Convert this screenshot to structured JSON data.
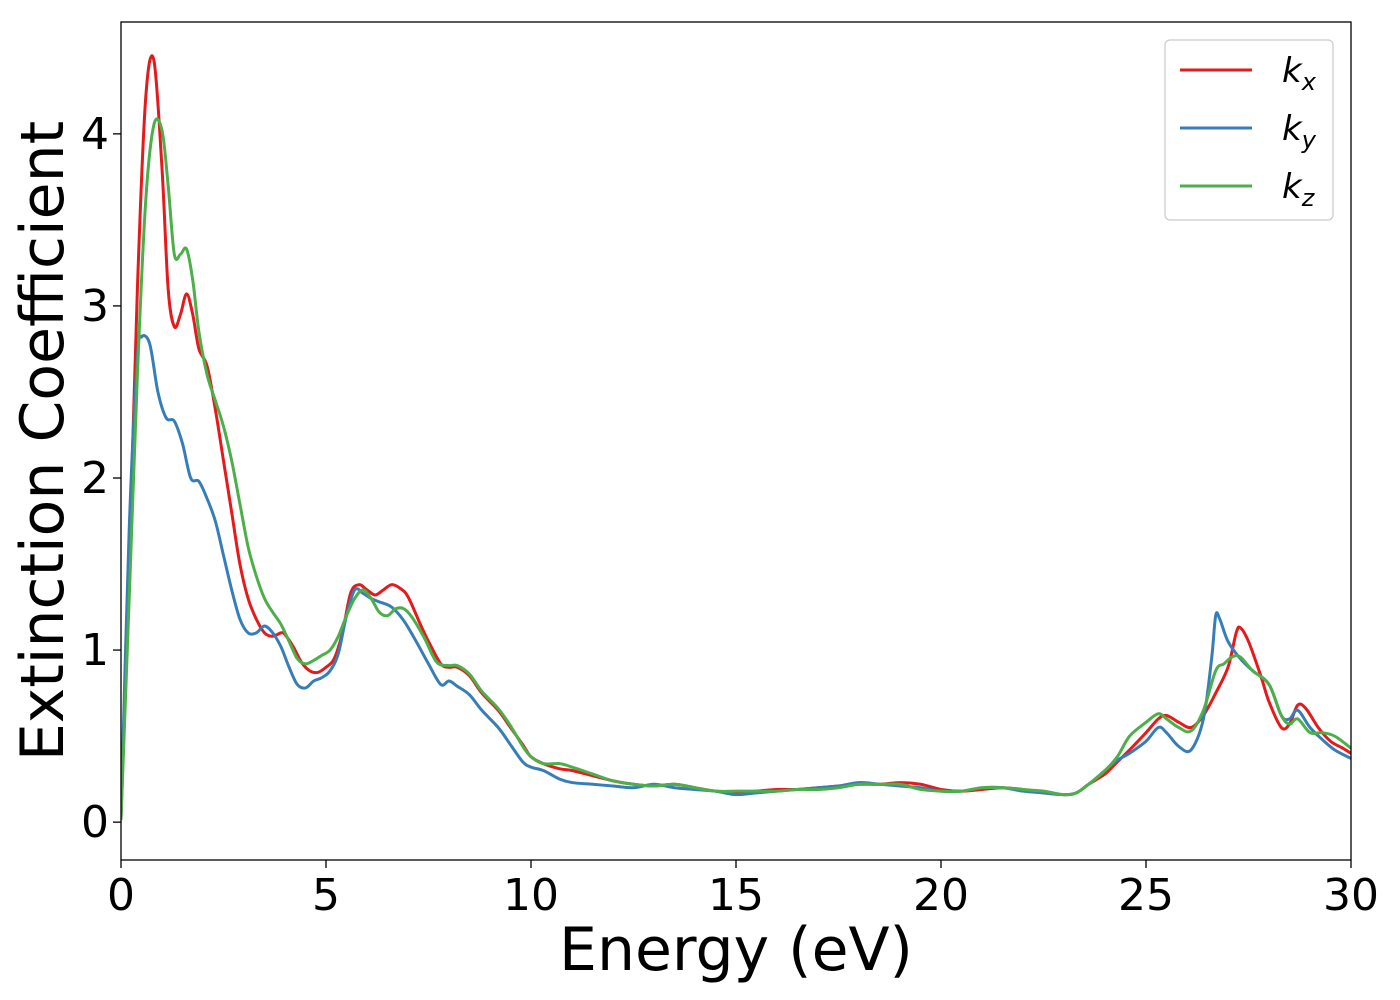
{
  "chart_data": {
    "type": "line",
    "title": "",
    "xlabel": "Energy (eV)",
    "ylabel": "Extinction Coefficient",
    "xlim": [
      0,
      30
    ],
    "ylim": [
      -0.22,
      4.65
    ],
    "xticks": [
      0,
      5,
      10,
      15,
      20,
      25,
      30
    ],
    "yticks": [
      0,
      1,
      2,
      3,
      4
    ],
    "xtick_labels": [
      "0",
      "5",
      "10",
      "15",
      "20",
      "25",
      "30"
    ],
    "ytick_labels": [
      "0",
      "1",
      "2",
      "3",
      "4"
    ],
    "grid": false,
    "legend_position": "top-right",
    "series": [
      {
        "name": "k_x",
        "label_main": "k",
        "label_sub": "x",
        "color": "#e41a1c",
        "points": [
          [
            0,
            0.02
          ],
          [
            0.2,
            1.5
          ],
          [
            0.4,
            3.1
          ],
          [
            0.6,
            4.2
          ],
          [
            0.8,
            4.43
          ],
          [
            1.0,
            3.8
          ],
          [
            1.15,
            3.1
          ],
          [
            1.3,
            2.88
          ],
          [
            1.45,
            2.95
          ],
          [
            1.6,
            3.07
          ],
          [
            1.75,
            2.95
          ],
          [
            1.9,
            2.75
          ],
          [
            2.1,
            2.65
          ],
          [
            2.3,
            2.4
          ],
          [
            2.5,
            2.1
          ],
          [
            2.7,
            1.8
          ],
          [
            2.9,
            1.5
          ],
          [
            3.1,
            1.3
          ],
          [
            3.3,
            1.18
          ],
          [
            3.5,
            1.1
          ],
          [
            3.7,
            1.08
          ],
          [
            3.9,
            1.1
          ],
          [
            4.0,
            1.09
          ],
          [
            4.2,
            1.02
          ],
          [
            4.4,
            0.93
          ],
          [
            4.6,
            0.88
          ],
          [
            4.8,
            0.87
          ],
          [
            5.0,
            0.9
          ],
          [
            5.2,
            0.95
          ],
          [
            5.4,
            1.1
          ],
          [
            5.6,
            1.33
          ],
          [
            5.8,
            1.38
          ],
          [
            6.0,
            1.35
          ],
          [
            6.2,
            1.32
          ],
          [
            6.4,
            1.35
          ],
          [
            6.6,
            1.38
          ],
          [
            6.8,
            1.36
          ],
          [
            7.0,
            1.31
          ],
          [
            7.3,
            1.15
          ],
          [
            7.5,
            1.05
          ],
          [
            7.8,
            0.92
          ],
          [
            8.0,
            0.9
          ],
          [
            8.2,
            0.9
          ],
          [
            8.5,
            0.85
          ],
          [
            8.8,
            0.75
          ],
          [
            9.2,
            0.65
          ],
          [
            9.5,
            0.55
          ],
          [
            9.8,
            0.45
          ],
          [
            10.0,
            0.38
          ],
          [
            10.3,
            0.34
          ],
          [
            10.7,
            0.31
          ],
          [
            11.0,
            0.3
          ],
          [
            11.5,
            0.27
          ],
          [
            12.0,
            0.24
          ],
          [
            12.5,
            0.22
          ],
          [
            13.0,
            0.21
          ],
          [
            13.5,
            0.22
          ],
          [
            14.0,
            0.2
          ],
          [
            14.5,
            0.18
          ],
          [
            15.0,
            0.17
          ],
          [
            15.5,
            0.18
          ],
          [
            16.0,
            0.19
          ],
          [
            16.5,
            0.19
          ],
          [
            17.0,
            0.2
          ],
          [
            17.5,
            0.21
          ],
          [
            18.0,
            0.22
          ],
          [
            18.5,
            0.22
          ],
          [
            19.0,
            0.23
          ],
          [
            19.5,
            0.22
          ],
          [
            20.0,
            0.19
          ],
          [
            20.5,
            0.18
          ],
          [
            21.0,
            0.19
          ],
          [
            21.5,
            0.2
          ],
          [
            22.0,
            0.19
          ],
          [
            22.5,
            0.17
          ],
          [
            23.0,
            0.16
          ],
          [
            23.3,
            0.17
          ],
          [
            23.6,
            0.22
          ],
          [
            24.0,
            0.28
          ],
          [
            24.3,
            0.35
          ],
          [
            24.6,
            0.42
          ],
          [
            25.0,
            0.52
          ],
          [
            25.3,
            0.6
          ],
          [
            25.5,
            0.62
          ],
          [
            25.8,
            0.58
          ],
          [
            26.1,
            0.55
          ],
          [
            26.4,
            0.62
          ],
          [
            26.7,
            0.75
          ],
          [
            27.0,
            0.9
          ],
          [
            27.2,
            1.1
          ],
          [
            27.3,
            1.13
          ],
          [
            27.5,
            1.05
          ],
          [
            27.8,
            0.85
          ],
          [
            28.0,
            0.7
          ],
          [
            28.3,
            0.55
          ],
          [
            28.5,
            0.57
          ],
          [
            28.7,
            0.68
          ],
          [
            28.9,
            0.66
          ],
          [
            29.2,
            0.55
          ],
          [
            29.5,
            0.47
          ],
          [
            29.8,
            0.43
          ],
          [
            30.0,
            0.4
          ]
        ]
      },
      {
        "name": "k_y",
        "label_main": "k",
        "label_sub": "y",
        "color": "#377eb8",
        "points": [
          [
            0,
            0.02
          ],
          [
            0.2,
            1.7
          ],
          [
            0.4,
            2.7
          ],
          [
            0.5,
            2.82
          ],
          [
            0.7,
            2.78
          ],
          [
            0.9,
            2.5
          ],
          [
            1.1,
            2.35
          ],
          [
            1.3,
            2.33
          ],
          [
            1.5,
            2.2
          ],
          [
            1.7,
            2.0
          ],
          [
            1.9,
            1.98
          ],
          [
            2.1,
            1.88
          ],
          [
            2.3,
            1.75
          ],
          [
            2.5,
            1.55
          ],
          [
            2.7,
            1.35
          ],
          [
            2.9,
            1.18
          ],
          [
            3.1,
            1.1
          ],
          [
            3.3,
            1.1
          ],
          [
            3.5,
            1.14
          ],
          [
            3.7,
            1.1
          ],
          [
            3.9,
            1.02
          ],
          [
            4.1,
            0.9
          ],
          [
            4.3,
            0.8
          ],
          [
            4.5,
            0.78
          ],
          [
            4.7,
            0.82
          ],
          [
            4.9,
            0.84
          ],
          [
            5.1,
            0.88
          ],
          [
            5.3,
            0.98
          ],
          [
            5.5,
            1.2
          ],
          [
            5.7,
            1.35
          ],
          [
            5.9,
            1.33
          ],
          [
            6.1,
            1.3
          ],
          [
            6.3,
            1.28
          ],
          [
            6.6,
            1.25
          ],
          [
            6.9,
            1.17
          ],
          [
            7.2,
            1.05
          ],
          [
            7.5,
            0.92
          ],
          [
            7.8,
            0.8
          ],
          [
            8.0,
            0.82
          ],
          [
            8.2,
            0.79
          ],
          [
            8.5,
            0.74
          ],
          [
            8.8,
            0.65
          ],
          [
            9.2,
            0.55
          ],
          [
            9.5,
            0.45
          ],
          [
            9.8,
            0.35
          ],
          [
            10.0,
            0.32
          ],
          [
            10.3,
            0.3
          ],
          [
            10.7,
            0.25
          ],
          [
            11.0,
            0.23
          ],
          [
            11.5,
            0.22
          ],
          [
            12.0,
            0.21
          ],
          [
            12.5,
            0.2
          ],
          [
            13.0,
            0.22
          ],
          [
            13.5,
            0.2
          ],
          [
            14.0,
            0.19
          ],
          [
            14.5,
            0.18
          ],
          [
            15.0,
            0.16
          ],
          [
            15.5,
            0.17
          ],
          [
            16.0,
            0.18
          ],
          [
            16.5,
            0.19
          ],
          [
            17.0,
            0.2
          ],
          [
            17.5,
            0.21
          ],
          [
            18.0,
            0.23
          ],
          [
            18.5,
            0.22
          ],
          [
            19.0,
            0.21
          ],
          [
            19.5,
            0.2
          ],
          [
            20.0,
            0.18
          ],
          [
            20.5,
            0.18
          ],
          [
            21.0,
            0.2
          ],
          [
            21.5,
            0.2
          ],
          [
            22.0,
            0.18
          ],
          [
            22.5,
            0.17
          ],
          [
            23.0,
            0.16
          ],
          [
            23.3,
            0.17
          ],
          [
            23.6,
            0.22
          ],
          [
            24.0,
            0.3
          ],
          [
            24.3,
            0.36
          ],
          [
            24.6,
            0.4
          ],
          [
            25.0,
            0.47
          ],
          [
            25.3,
            0.55
          ],
          [
            25.5,
            0.52
          ],
          [
            25.8,
            0.44
          ],
          [
            26.1,
            0.42
          ],
          [
            26.4,
            0.6
          ],
          [
            26.6,
            0.95
          ],
          [
            26.7,
            1.2
          ],
          [
            26.8,
            1.18
          ],
          [
            27.0,
            1.05
          ],
          [
            27.3,
            0.95
          ],
          [
            27.6,
            0.88
          ],
          [
            28.0,
            0.8
          ],
          [
            28.3,
            0.62
          ],
          [
            28.5,
            0.6
          ],
          [
            28.7,
            0.65
          ],
          [
            29.0,
            0.55
          ],
          [
            29.3,
            0.48
          ],
          [
            29.6,
            0.42
          ],
          [
            30.0,
            0.37
          ]
        ]
      },
      {
        "name": "k_z",
        "label_main": "k",
        "label_sub": "z",
        "color": "#4daf4a",
        "points": [
          [
            0,
            0.02
          ],
          [
            0.2,
            1.3
          ],
          [
            0.4,
            2.6
          ],
          [
            0.6,
            3.6
          ],
          [
            0.8,
            4.05
          ],
          [
            1.0,
            4.02
          ],
          [
            1.15,
            3.7
          ],
          [
            1.3,
            3.3
          ],
          [
            1.45,
            3.3
          ],
          [
            1.6,
            3.33
          ],
          [
            1.75,
            3.15
          ],
          [
            1.9,
            2.85
          ],
          [
            2.1,
            2.6
          ],
          [
            2.3,
            2.45
          ],
          [
            2.5,
            2.3
          ],
          [
            2.7,
            2.1
          ],
          [
            2.9,
            1.85
          ],
          [
            3.1,
            1.6
          ],
          [
            3.3,
            1.43
          ],
          [
            3.5,
            1.3
          ],
          [
            3.7,
            1.22
          ],
          [
            3.9,
            1.15
          ],
          [
            4.1,
            1.05
          ],
          [
            4.3,
            0.95
          ],
          [
            4.5,
            0.92
          ],
          [
            4.7,
            0.94
          ],
          [
            4.9,
            0.97
          ],
          [
            5.1,
            1.0
          ],
          [
            5.3,
            1.08
          ],
          [
            5.5,
            1.2
          ],
          [
            5.7,
            1.3
          ],
          [
            5.9,
            1.35
          ],
          [
            6.1,
            1.3
          ],
          [
            6.3,
            1.22
          ],
          [
            6.5,
            1.2
          ],
          [
            6.7,
            1.24
          ],
          [
            6.9,
            1.24
          ],
          [
            7.1,
            1.19
          ],
          [
            7.4,
            1.07
          ],
          [
            7.7,
            0.93
          ],
          [
            8.0,
            0.91
          ],
          [
            8.2,
            0.91
          ],
          [
            8.5,
            0.86
          ],
          [
            8.8,
            0.76
          ],
          [
            9.2,
            0.66
          ],
          [
            9.5,
            0.56
          ],
          [
            9.8,
            0.44
          ],
          [
            10.0,
            0.38
          ],
          [
            10.3,
            0.34
          ],
          [
            10.7,
            0.34
          ],
          [
            11.0,
            0.32
          ],
          [
            11.5,
            0.28
          ],
          [
            12.0,
            0.24
          ],
          [
            12.5,
            0.22
          ],
          [
            13.0,
            0.21
          ],
          [
            13.5,
            0.22
          ],
          [
            14.0,
            0.2
          ],
          [
            14.5,
            0.18
          ],
          [
            15.0,
            0.18
          ],
          [
            15.5,
            0.18
          ],
          [
            16.0,
            0.18
          ],
          [
            16.5,
            0.19
          ],
          [
            17.0,
            0.19
          ],
          [
            17.5,
            0.2
          ],
          [
            18.0,
            0.22
          ],
          [
            18.5,
            0.22
          ],
          [
            19.0,
            0.22
          ],
          [
            19.5,
            0.19
          ],
          [
            20.0,
            0.18
          ],
          [
            20.5,
            0.18
          ],
          [
            21.0,
            0.2
          ],
          [
            21.5,
            0.2
          ],
          [
            22.0,
            0.19
          ],
          [
            22.5,
            0.18
          ],
          [
            23.0,
            0.16
          ],
          [
            23.3,
            0.17
          ],
          [
            23.6,
            0.22
          ],
          [
            24.0,
            0.3
          ],
          [
            24.3,
            0.38
          ],
          [
            24.6,
            0.5
          ],
          [
            25.0,
            0.58
          ],
          [
            25.3,
            0.63
          ],
          [
            25.5,
            0.6
          ],
          [
            25.8,
            0.55
          ],
          [
            26.1,
            0.53
          ],
          [
            26.4,
            0.65
          ],
          [
            26.7,
            0.88
          ],
          [
            26.9,
            0.92
          ],
          [
            27.1,
            0.96
          ],
          [
            27.3,
            0.96
          ],
          [
            27.6,
            0.88
          ],
          [
            28.0,
            0.8
          ],
          [
            28.3,
            0.62
          ],
          [
            28.5,
            0.57
          ],
          [
            28.7,
            0.6
          ],
          [
            29.0,
            0.52
          ],
          [
            29.3,
            0.52
          ],
          [
            29.6,
            0.5
          ],
          [
            30.0,
            0.43
          ]
        ]
      }
    ]
  }
}
